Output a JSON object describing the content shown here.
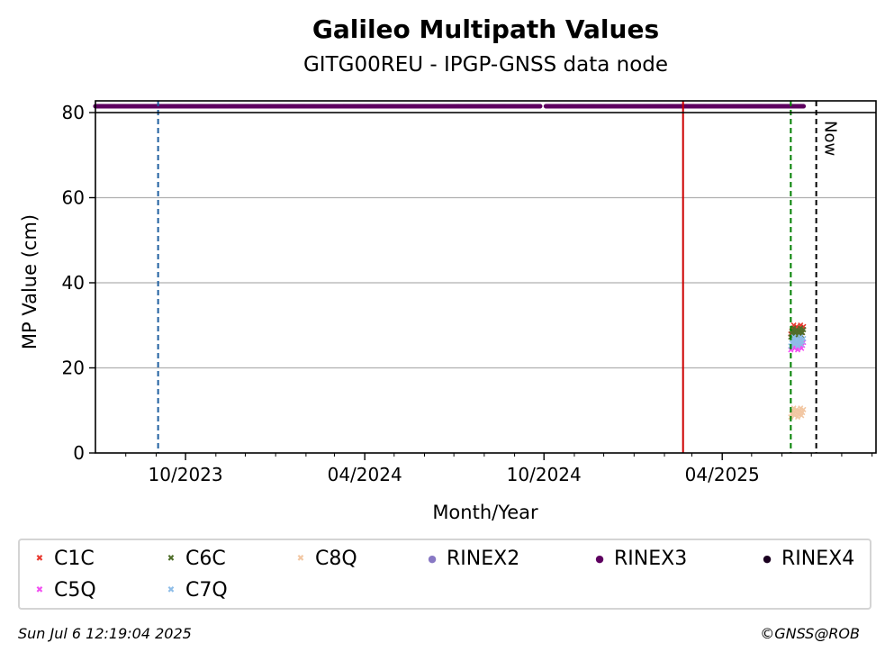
{
  "chart_data": {
    "type": "scatter",
    "title": "Galileo Multipath Values",
    "subtitle": "GITG00REU - IPGP-GNSS data node",
    "xlabel": "Month/Year",
    "ylabel": "MP Value (cm)",
    "xlim": [
      "2023-07-01",
      "2025-09-05"
    ],
    "ylim": [
      0,
      80
    ],
    "grid": "y",
    "y_ticks": [
      0,
      20,
      40,
      60,
      80
    ],
    "x_ticks": [
      {
        "date": "2023-10-01",
        "label": "10/2023"
      },
      {
        "date": "2024-04-01",
        "label": "04/2024"
      },
      {
        "date": "2024-10-01",
        "label": "10/2024"
      },
      {
        "date": "2025-04-01",
        "label": "04/2025"
      }
    ],
    "x_minor_ticks": [
      "2023-08-01",
      "2023-09-01",
      "2023-11-01",
      "2023-12-01",
      "2024-01-01",
      "2024-02-01",
      "2024-03-01",
      "2024-05-01",
      "2024-06-01",
      "2024-07-01",
      "2024-08-01",
      "2024-09-01",
      "2024-11-01",
      "2024-12-01",
      "2025-01-01",
      "2025-02-01",
      "2025-03-01",
      "2025-05-01",
      "2025-06-01",
      "2025-07-01",
      "2025-08-01",
      "2025-09-01"
    ],
    "vertical_lines": [
      {
        "date": "2023-09-03",
        "color": "#1f5fa0",
        "style": "dashed"
      },
      {
        "date": "2025-02-20",
        "color": "#cc0000",
        "style": "solid"
      },
      {
        "date": "2025-06-10",
        "color": "#008000",
        "style": "dashed"
      },
      {
        "date": "2025-07-06",
        "color": "#000000",
        "style": "dashed",
        "label": "Now"
      }
    ],
    "series": [
      {
        "name": "C1C",
        "marker": "x",
        "color": "#e8392f",
        "x_range": [
          "2025-06-10",
          "2025-06-23"
        ],
        "y": 29.0
      },
      {
        "name": "C6C",
        "marker": "x",
        "color": "#4f6e2a",
        "x_range": [
          "2025-06-10",
          "2025-06-23"
        ],
        "y": 28.3
      },
      {
        "name": "C8Q",
        "marker": "x",
        "color": "#f2c7a3",
        "x_range": [
          "2025-06-10",
          "2025-06-23"
        ],
        "y": 9.5
      },
      {
        "name": "RINEX2",
        "marker": "o",
        "color": "#8878c4",
        "x_range": [],
        "y": null
      },
      {
        "name": "RINEX3",
        "marker": "o",
        "color": "#5e0060",
        "segments": [
          [
            "2023-07-01",
            "2024-09-27"
          ],
          [
            "2024-10-03",
            "2025-06-23"
          ]
        ],
        "y": 81.5
      },
      {
        "name": "RINEX4",
        "marker": "o",
        "color": "#1a0020",
        "x_range": [],
        "y": null
      },
      {
        "name": "C5Q",
        "marker": "x",
        "color": "#f24ef2",
        "x_range": [
          "2025-06-10",
          "2025-06-23"
        ],
        "y": 25.3
      },
      {
        "name": "C7Q",
        "marker": "x",
        "color": "#8ebde8",
        "x_range": [
          "2025-06-10",
          "2025-06-23"
        ],
        "y": 26.2
      }
    ]
  },
  "footer": {
    "timestamp": "Sun Jul  6 12:19:04 2025",
    "copyright": "©GNSS@ROB"
  }
}
